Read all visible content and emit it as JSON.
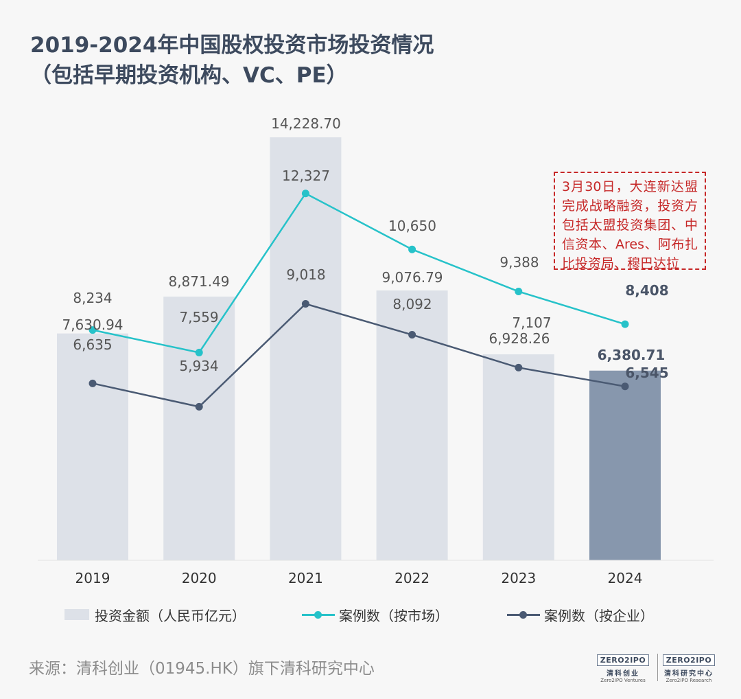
{
  "title": {
    "line1": "2019-2024年中国股权投资市场投资情况",
    "line2": "（包括早期投资机构、VC、PE）"
  },
  "chart_data": {
    "type": "bar",
    "categories": [
      "2019",
      "2020",
      "2021",
      "2022",
      "2023",
      "2024"
    ],
    "series": [
      {
        "name": "投资金额（人民币亿元）",
        "type": "bar",
        "values": [
          7630.94,
          8871.49,
          14228.7,
          9076.79,
          6928.26,
          6380.71
        ],
        "labels": [
          "7,630.94",
          "8,871.49",
          "14,228.70",
          "9,076.79",
          "6,928.26",
          "6,380.71"
        ],
        "color": "#dde1e8",
        "highlight_color": "#8797ad"
      },
      {
        "name": "案例数（按市场）",
        "type": "line",
        "values": [
          8234,
          7559,
          12327,
          10650,
          9388,
          8408
        ],
        "labels": [
          "8,234",
          "7,559",
          "12,327",
          "10,650",
          "9,388",
          "8,408"
        ],
        "color": "#26c2c9"
      },
      {
        "name": "案例数（按企业）",
        "type": "line",
        "values": [
          6635,
          5934,
          9018,
          8092,
          7107,
          6545
        ],
        "labels": [
          "6,635",
          "5,934",
          "9,018",
          "8,092",
          "7,107",
          "6,545"
        ],
        "color": "#4a5a73"
      }
    ],
    "grid": false,
    "legend": "bottom"
  },
  "annotation": "3月30日，大连新达盟完成战略融资，投资方包括太盟投资集团、中信资本、Ares、阿布扎比投资局、穆巴达拉",
  "source": "来源：清科创业（01945.HK）旗下清科研究中心",
  "logos": {
    "left": {
      "mark": "ZERO2IPO",
      "cn": "清科创业",
      "en": "Zero2IPO Ventures"
    },
    "right": {
      "mark": "ZERO2IPO",
      "cn": "清科研究中心",
      "en": "Zero2IPO Research"
    }
  }
}
